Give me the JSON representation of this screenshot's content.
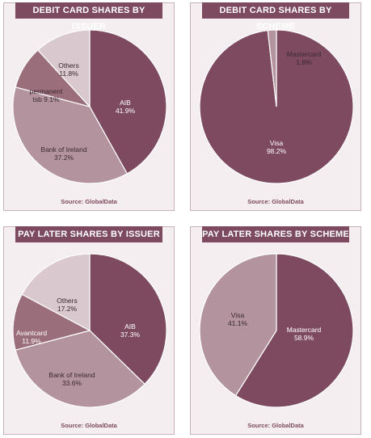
{
  "chart_data": [
    {
      "type": "pie",
      "title": "DEBIT CARD SHARES BY ISSUER",
      "source": "Source: GlobalData",
      "slices": [
        {
          "label": "AIB",
          "value_label": "41.9%",
          "value": 41.9,
          "color": "#7e4a5f",
          "text_color": "#ffffff"
        },
        {
          "label": "Bank of Ireland",
          "value_label": "37.2%",
          "value": 37.2,
          "color": "#b3939d",
          "text_color": "#3a2a30"
        },
        {
          "label": "permanent tsb",
          "value_label": "9.1%",
          "value": 9.1,
          "color": "#9b6e7c",
          "text_color": "#3a2a30"
        },
        {
          "label": "Others",
          "value_label": "11.8%",
          "value": 11.8,
          "color": "#d9c8cd",
          "text_color": "#3a2a30"
        }
      ]
    },
    {
      "type": "pie",
      "title": "DEBIT CARD SHARES BY SCHEME",
      "source": "Source: GlobalData",
      "slices": [
        {
          "label": "Visa",
          "value_label": "98.2%",
          "value": 98.2,
          "color": "#7e4a5f",
          "text_color": "#ffffff"
        },
        {
          "label": "Mastercard",
          "value_label": "1.8%",
          "value": 1.8,
          "color": "#b3939d",
          "text_color": "#3a2a30"
        }
      ]
    },
    {
      "type": "pie",
      "title": "PAY LATER SHARES BY ISSUER",
      "source": "Source: GlobalData",
      "slices": [
        {
          "label": "AIB",
          "value_label": "37.3%",
          "value": 37.3,
          "color": "#7e4a5f",
          "text_color": "#ffffff"
        },
        {
          "label": "Bank of Ireland",
          "value_label": "33.6%",
          "value": 33.6,
          "color": "#b3939d",
          "text_color": "#3a2a30"
        },
        {
          "label": "Avantcard",
          "value_label": "11.9%",
          "value": 11.9,
          "color": "#9b6e7c",
          "text_color": "#ffffff"
        },
        {
          "label": "Others",
          "value_label": "17.2%",
          "value": 17.2,
          "color": "#d9c8cd",
          "text_color": "#3a2a30"
        }
      ]
    },
    {
      "type": "pie",
      "title": "PAY LATER SHARES BY SCHEME",
      "source": "Source: GlobalData",
      "slices": [
        {
          "label": "Mastercard",
          "value_label": "58.9%",
          "value": 58.9,
          "color": "#7e4a5f",
          "text_color": "#ffffff"
        },
        {
          "label": "Visa",
          "value_label": "41.1%",
          "value": 41.1,
          "color": "#b3939d",
          "text_color": "#3a2a30"
        }
      ]
    }
  ]
}
